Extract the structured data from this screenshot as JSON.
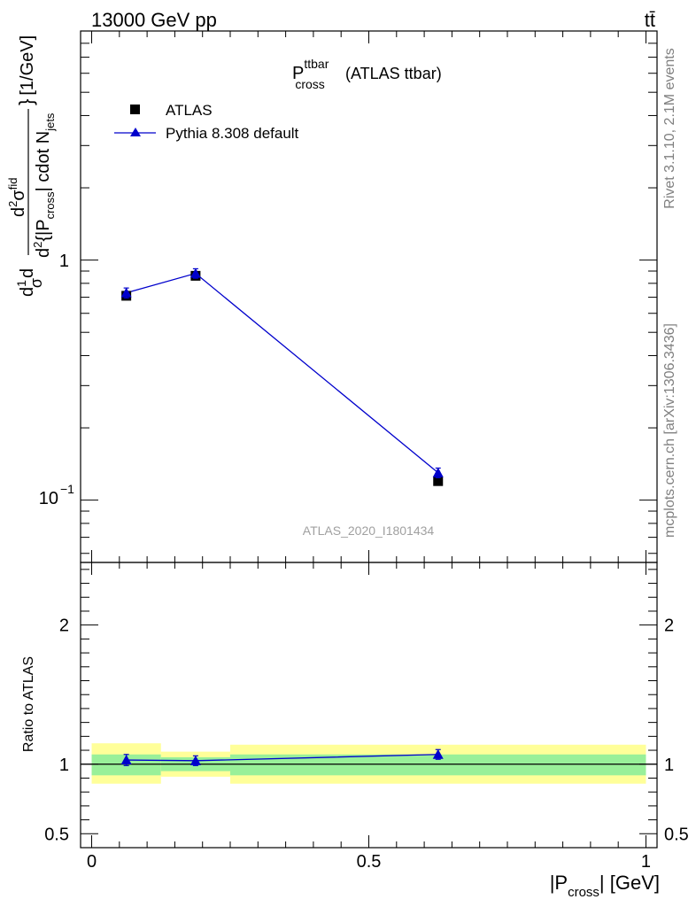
{
  "header": {
    "energy_label": "13000 GeV pp",
    "process_label": "tt̄"
  },
  "side_labels": {
    "rivet": "Rivet 3.1.10,  2.1M events",
    "site": "mcplots.cern.ch [arXiv:1306.3436]"
  },
  "chart_data": [
    {
      "type": "scatter",
      "panel": "main",
      "title_main": "P",
      "title_sup": "ttbar",
      "title_sub": "cross",
      "title_suffix": "(ATLAS ttbar)",
      "watermark": "ATLAS_2020_I1801434",
      "yscale": "log",
      "ylim": [
        0.055,
        9.0
      ],
      "xlim": [
        -0.02,
        1.02
      ],
      "ylabel_parts": {
        "d1": "d",
        "one": "1",
        "sigma": "σ",
        "d2": "d",
        "d2num": "d",
        "num_sup": "2",
        "num_sigma": "σ",
        "num_fid": "fid",
        "den_d": "d",
        "den_sup": "2",
        "den_open": "{|P",
        "den_sub": "cross",
        "den_close": "| cdot N",
        "den_jets": "jets",
        "brace_close": "}",
        "units": "[1/GeV]"
      },
      "yticks": [
        {
          "value": 1,
          "label": "1"
        },
        {
          "value": 0.1,
          "label_base": "10",
          "label_exp": "−1"
        }
      ],
      "legend_position": "top-left",
      "series": [
        {
          "name": "ATLAS",
          "marker": "square",
          "color": "#000000",
          "x": [
            0.0625,
            0.1875,
            0.625
          ],
          "x_bins": [
            [
              0.0,
              0.125
            ],
            [
              0.125,
              0.25
            ],
            [
              0.25,
              1.0
            ]
          ],
          "y": [
            0.71,
            0.86,
            0.12
          ],
          "yerr": [
            0.01,
            0.01,
            0.003
          ]
        },
        {
          "name": "Pythia 8.308 default",
          "marker": "triangle",
          "line": true,
          "color": "#0000cc",
          "x": [
            0.0625,
            0.1875,
            0.625
          ],
          "y": [
            0.73,
            0.88,
            0.13
          ],
          "yerr": [
            0.035,
            0.04,
            0.006
          ]
        }
      ]
    },
    {
      "type": "scatter",
      "panel": "ratio",
      "ylabel": "Ratio to ATLAS",
      "xlabel_pre": "|P",
      "xlabel_sub": "cross",
      "xlabel_post": "| [GeV]",
      "ylim": [
        0.4,
        2.45
      ],
      "xlim": [
        -0.02,
        1.02
      ],
      "yticks": [
        0.5,
        1,
        2
      ],
      "ytick_labels": [
        "0.5",
        "1",
        "2"
      ],
      "xticks": [
        0,
        0.5,
        1
      ],
      "xtick_labels": [
        "0",
        "0.5",
        "1"
      ],
      "reference": 1,
      "bands": [
        {
          "x0": 0.0,
          "x1": 0.125,
          "yellow": [
            0.86,
            1.15
          ],
          "green": [
            0.92,
            1.07
          ]
        },
        {
          "x0": 0.125,
          "x1": 0.25,
          "yellow": [
            0.91,
            1.09
          ],
          "green": [
            0.95,
            1.05
          ]
        },
        {
          "x0": 0.25,
          "x1": 1.0,
          "yellow": [
            0.86,
            1.14
          ],
          "green": [
            0.92,
            1.07
          ]
        }
      ],
      "series": [
        {
          "name": "Pythia 8.308 default",
          "color": "#0000cc",
          "x": [
            0.0625,
            0.1875,
            0.625
          ],
          "y": [
            1.03,
            1.025,
            1.07
          ],
          "yerr": [
            0.04,
            0.035,
            0.035
          ]
        }
      ]
    }
  ]
}
